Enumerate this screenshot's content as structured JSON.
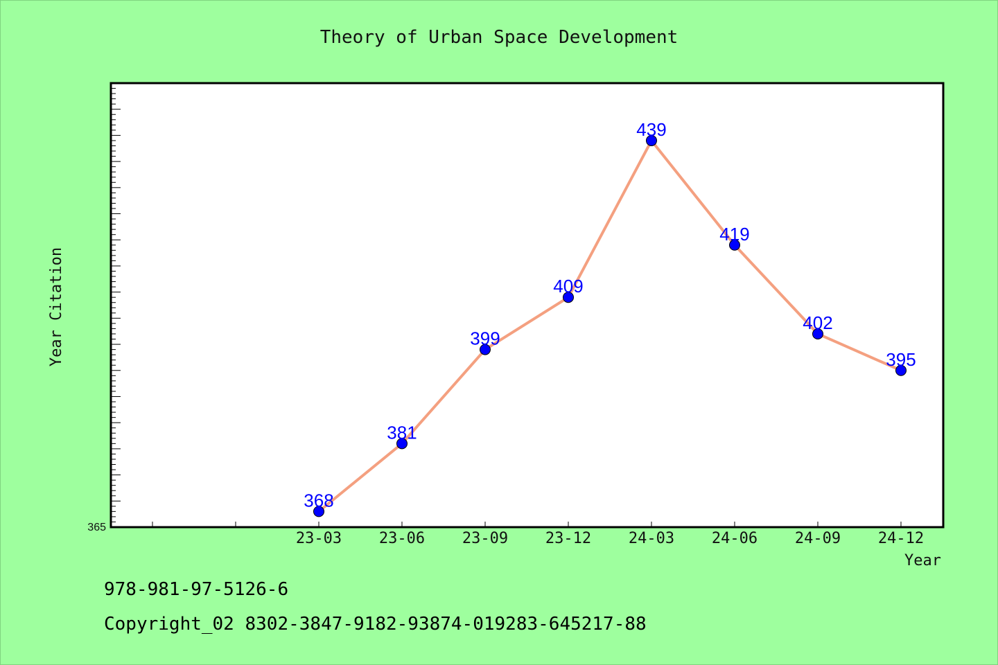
{
  "chart_data": {
    "type": "line",
    "title": "Theory of Urban Space Development",
    "xlabel": "Year",
    "ylabel": "Year Citation",
    "categories": [
      "23-03",
      "23-06",
      "23-09",
      "23-12",
      "24-03",
      "24-06",
      "24-09",
      "24-12"
    ],
    "values": [
      368,
      381,
      399,
      409,
      439,
      419,
      402,
      395
    ],
    "ylim": [
      365,
      450
    ],
    "y_tick_labels": [
      "365"
    ],
    "grid": false,
    "line_color": "#f4a080",
    "marker_color": "#0000ff",
    "label_color": "#0000ff",
    "background_color": "#9eff9e",
    "plot_background": "#ffffff"
  },
  "footer": {
    "isbn": "978-981-97-5126-6",
    "copyright": "Copyright_02 8302-3847-9182-93874-019283-645217-88"
  }
}
